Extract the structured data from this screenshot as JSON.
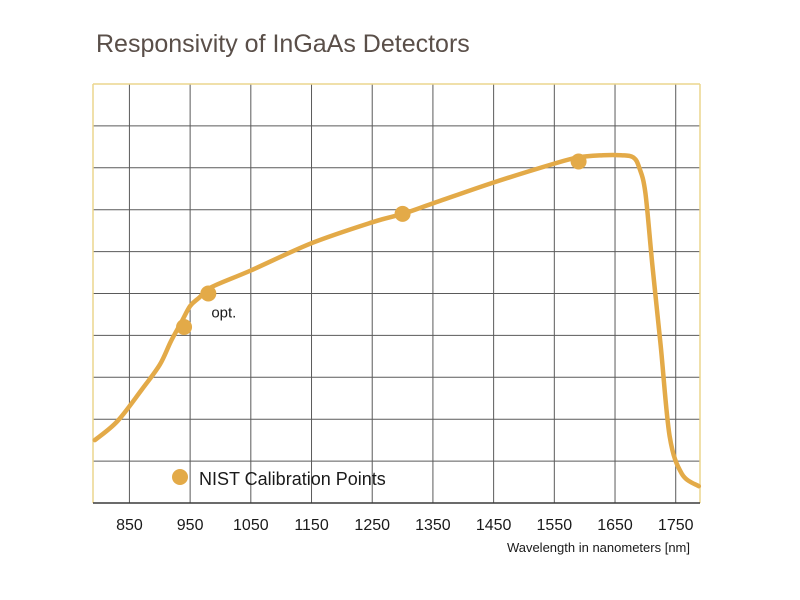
{
  "chart_data": {
    "type": "line",
    "title": "Responsivity of InGaAs Detectors",
    "xlabel": "Wavelength in nanometers [nm]",
    "ylabel": "",
    "xlim": [
      790,
      1790
    ],
    "ylim": [
      0,
      10
    ],
    "x_ticks": [
      850,
      950,
      1050,
      1150,
      1250,
      1350,
      1450,
      1550,
      1650,
      1750
    ],
    "y_grid": [
      1,
      2,
      3,
      4,
      5,
      6,
      7,
      8,
      9
    ],
    "grid": true,
    "curve_color": "#e3aa48",
    "grid_color": "#5a5a5a",
    "frame_color": "#ecd58e",
    "series": [
      {
        "name": "",
        "x": [
          793,
          830,
          870,
          900,
          918,
          935,
          950,
          965,
          985,
          1050,
          1150,
          1250,
          1300,
          1350,
          1450,
          1550,
          1590,
          1630,
          1660,
          1680,
          1690,
          1700,
          1712,
          1725,
          1740,
          1760,
          1788
        ],
        "y": [
          1.5,
          1.95,
          2.7,
          3.3,
          3.85,
          4.3,
          4.7,
          4.9,
          5.15,
          5.55,
          6.2,
          6.7,
          6.9,
          7.15,
          7.65,
          8.1,
          8.25,
          8.3,
          8.3,
          8.25,
          8.0,
          7.4,
          5.6,
          3.8,
          1.6,
          0.7,
          0.4
        ]
      }
    ],
    "calibration_points": {
      "legend_label": "NIST Calibration Points",
      "points": [
        {
          "x": 940,
          "y": 4.2
        },
        {
          "x": 980,
          "y": 5.0
        },
        {
          "x": 1300,
          "y": 6.9
        },
        {
          "x": 1590,
          "y": 8.15
        }
      ]
    },
    "annotations": [
      {
        "text": "opt.",
        "x": 980,
        "y": 5.0
      }
    ],
    "legend_position": "bottom-left"
  }
}
